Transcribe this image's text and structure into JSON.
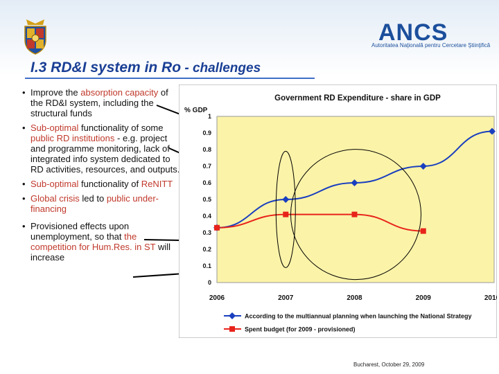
{
  "header": {
    "logo_text": "ANCS",
    "logo_subtitle": "Autoritatea Naţională pentru Cercetare Ştiinţifică"
  },
  "slide": {
    "title_part1": "I.3 RD&I system in Ro",
    "title_part2": " - challenges",
    "footer": "Bucharest, October 29, 2009"
  },
  "bullets": [
    {
      "marker": "•",
      "segments": [
        {
          "text": "Improve the ",
          "hl": false
        },
        {
          "text": "absorption capacity",
          "hl": true
        },
        {
          "text": " of the RD&I system, including the structural funds",
          "hl": false
        }
      ]
    },
    {
      "marker": "•",
      "segments": [
        {
          "text": "Sub-optimal",
          "hl": true
        },
        {
          "text": " functionality of some ",
          "hl": false
        },
        {
          "text": "public RD institutions",
          "hl": true
        },
        {
          "text": " - e.g. project and programme monitoring, lack of integrated info system dedicated to RD activities, resources, and outputs.",
          "hl": false
        }
      ]
    },
    {
      "marker": "•",
      "segments": [
        {
          "text": "Sub-optimal",
          "hl": true
        },
        {
          "text": " functionality of ",
          "hl": false
        },
        {
          "text": "ReNITT",
          "hl": true
        }
      ]
    },
    {
      "marker": "•",
      "segments": [
        {
          "text": "Global crisis",
          "hl": true
        },
        {
          "text": " led to ",
          "hl": false
        },
        {
          "text": "public under-financing",
          "hl": true
        }
      ]
    },
    {
      "marker": "•",
      "segments": [
        {
          "text": "Provisioned effects upon unemployment, so that ",
          "hl": false
        },
        {
          "text": "the competition for Hum.Res. in ST",
          "hl": true
        },
        {
          "text": " will increase",
          "hl": false
        }
      ]
    }
  ],
  "chart_data": {
    "type": "line",
    "title": "Government RD Expenditure - share in GDP",
    "ylabel": "% GDP",
    "ylim": [
      0,
      1
    ],
    "yticks": [
      0,
      0.1,
      0.2,
      0.3,
      0.4,
      0.5,
      0.6,
      0.7,
      0.8,
      0.9,
      1
    ],
    "ytick_labels": [
      "0",
      "0.1",
      "0.2",
      "0.3",
      "0.4",
      "0.5",
      "0.6",
      "0.7",
      "0.8",
      "0.9",
      "1"
    ],
    "x": [
      "2006",
      "2007",
      "2008",
      "2009",
      "2010"
    ],
    "grid": false,
    "legend_position": "bottom",
    "series": [
      {
        "name": "According to the multiannual planning when launching the National Strategy",
        "color": "#1a3fbf",
        "marker": "diamond",
        "values": [
          0.33,
          0.5,
          0.6,
          0.7,
          0.91
        ]
      },
      {
        "name": "Spent budget (for 2009 - provisioned)",
        "color": "#e8231a",
        "marker": "square",
        "values": [
          0.33,
          0.41,
          0.41,
          0.31,
          null
        ]
      }
    ],
    "plot_background": "#fbf3a8",
    "chart_background": "#ffffff"
  }
}
